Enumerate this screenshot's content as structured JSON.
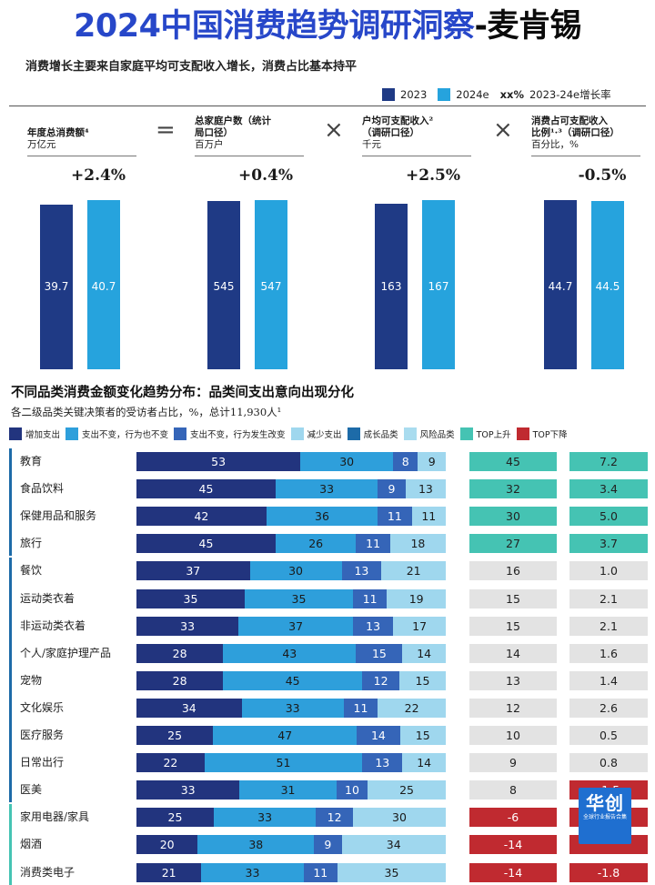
{
  "header": {
    "title_part1": "2024中国消费趋势调研洞察",
    "title_part2": "-麦肯锡",
    "subtitle": "消费增长主要来自家庭平均可支配收入增长，消费占比基本持平"
  },
  "legend_top": {
    "y2023": "2023",
    "y2024": "2024e",
    "growth_marker": "xx%",
    "growth_label": "2023-24e增长率"
  },
  "colors": {
    "y2023": "#1f3a85",
    "y2024": "#26a3dd",
    "increase": "#22347e",
    "flat": "#2e9fdb",
    "flat_changed": "#3565b8",
    "decrease": "#9fd7ee",
    "growth_cat": "#1d6ba8",
    "risk_cat": "#a9dcef",
    "top_up": "#45c3b3",
    "top_down": "#c02a30",
    "neutral_cell": "#e3e3e3"
  },
  "chart_data": [
    {
      "type": "bar",
      "panels": [
        {
          "label_lines": [
            "年度总消费额⁴"
          ],
          "unit": "万亿元",
          "growth": "+2.4%",
          "values": [
            39.7,
            40.7
          ]
        },
        {
          "label_lines": [
            "总家庭户数（统计",
            "局口径）"
          ],
          "unit": "百万户",
          "growth": "+0.4%",
          "values": [
            545,
            547
          ]
        },
        {
          "label_lines": [
            "户均可支配收入²",
            "（调研口径）"
          ],
          "unit": "千元",
          "growth": "+2.5%",
          "values": [
            163,
            167
          ]
        },
        {
          "label_lines": [
            "消费占可支配收入",
            "比例¹·³（调研口径）"
          ],
          "unit": "百分比，%",
          "growth": "-0.5%",
          "values": [
            44.7,
            44.5
          ]
        }
      ],
      "operators": [
        "=",
        "×",
        "×"
      ],
      "series_names": [
        "2023",
        "2024e"
      ]
    },
    {
      "type": "table",
      "title": "不同品类消费金额变化趋势分布：品类间支出意向出现分化",
      "subtitle": "各二级品类关键决策者的受访者占比，%，总计11,930人¹",
      "legend": [
        "增加支出",
        "支出不变，行为也不变",
        "支出不变，行为发生改变",
        "减少支出",
        "成长品类",
        "风险品类",
        "TOP上升",
        "TOP下降"
      ],
      "rows": [
        {
          "name": "教育",
          "group": "growth",
          "values": [
            53,
            30,
            8,
            9
          ],
          "net": 45,
          "change": 7.2,
          "change_color": "up"
        },
        {
          "name": "食品饮料",
          "group": "growth",
          "values": [
            45,
            33,
            9,
            13
          ],
          "net": 32,
          "change": 3.4,
          "change_color": "up"
        },
        {
          "name": "保健用品和服务",
          "group": "growth",
          "values": [
            42,
            36,
            11,
            11
          ],
          "net": 30,
          "change": 5.0,
          "change_color": "up"
        },
        {
          "name": "旅行",
          "group": "growth",
          "values": [
            45,
            26,
            11,
            18
          ],
          "net": 27,
          "change": 3.7,
          "change_color": "up"
        },
        {
          "name": "餐饮",
          "group": "neutral",
          "values": [
            37,
            30,
            13,
            21
          ],
          "net": 16,
          "change": 1.0,
          "change_color": "neutral"
        },
        {
          "name": "运动类衣着",
          "group": "neutral",
          "values": [
            35,
            35,
            11,
            19
          ],
          "net": 15,
          "change": 2.1,
          "change_color": "neutral"
        },
        {
          "name": "非运动类衣着",
          "group": "neutral",
          "values": [
            33,
            37,
            13,
            17
          ],
          "net": 15,
          "change": 2.1,
          "change_color": "neutral"
        },
        {
          "name": "个人/家庭护理产品",
          "group": "neutral",
          "values": [
            28,
            43,
            15,
            14
          ],
          "net": 14,
          "change": 1.6,
          "change_color": "neutral"
        },
        {
          "name": "宠物",
          "group": "neutral",
          "values": [
            28,
            45,
            12,
            15
          ],
          "net": 13,
          "change": 1.4,
          "change_color": "neutral"
        },
        {
          "name": "文化娱乐",
          "group": "neutral",
          "values": [
            34,
            33,
            11,
            22
          ],
          "net": 12,
          "change": 2.6,
          "change_color": "neutral"
        },
        {
          "name": "医疗服务",
          "group": "neutral",
          "values": [
            25,
            47,
            14,
            15
          ],
          "net": 10,
          "change": 0.5,
          "change_color": "neutral"
        },
        {
          "name": "日常出行",
          "group": "neutral",
          "values": [
            22,
            51,
            13,
            14
          ],
          "net": 9,
          "change": 0.8,
          "change_color": "neutral"
        },
        {
          "name": "医美",
          "group": "neutral",
          "values": [
            33,
            31,
            10,
            25
          ],
          "net": 8,
          "change": -1.5,
          "change_color": "down"
        },
        {
          "name": "家用电器/家具",
          "group": "risk",
          "values": [
            25,
            33,
            12,
            30
          ],
          "net": -6,
          "change": null,
          "change_color": "down"
        },
        {
          "name": "烟酒",
          "group": "risk",
          "values": [
            20,
            38,
            9,
            34
          ],
          "net": -14,
          "change": null,
          "change_color": "down"
        },
        {
          "name": "消费类电子",
          "group": "risk",
          "values": [
            21,
            33,
            11,
            35
          ],
          "net": -14,
          "change": -1.8,
          "change_color": "down"
        }
      ]
    }
  ],
  "watermark": {
    "main": "华创",
    "sub": "全球行业报告合集"
  }
}
